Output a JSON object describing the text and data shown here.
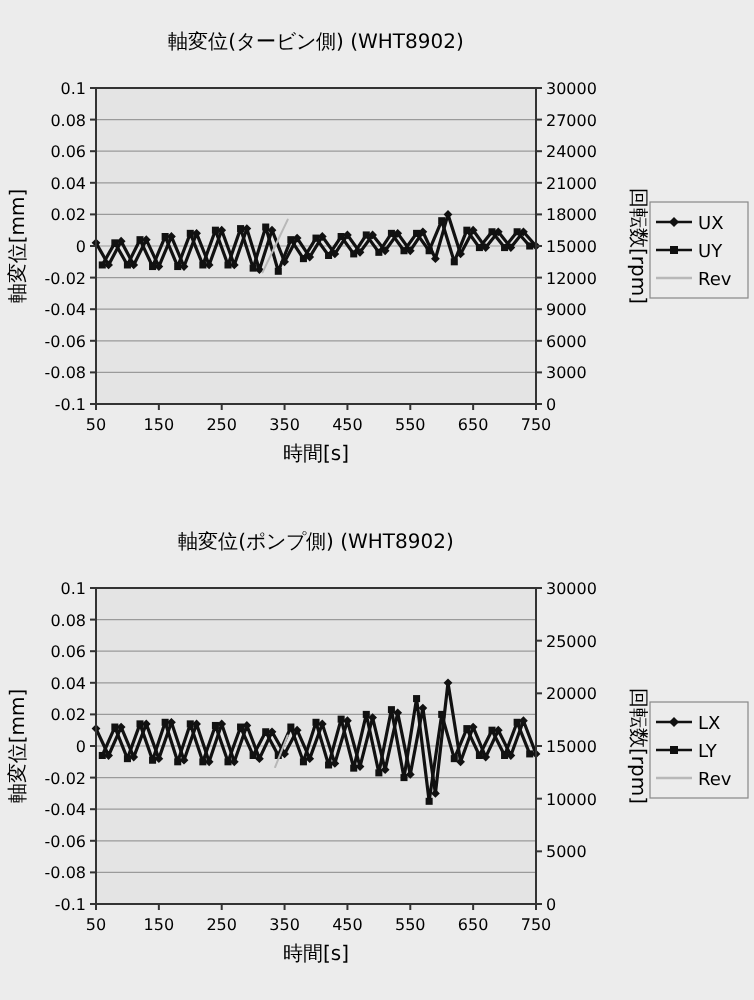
{
  "chart_data": [
    {
      "type": "line",
      "title": "軸変位(タービン側) (WHT8902)",
      "xlabel": "時間[s]",
      "ylabel": "軸変位[mm]",
      "y2label": "回転数[rpm]",
      "xlim": [
        50,
        750
      ],
      "xticks": [
        50,
        150,
        250,
        350,
        450,
        550,
        650,
        750
      ],
      "ylim": [
        -0.1,
        0.1
      ],
      "yticks": [
        -0.1,
        -0.08,
        -0.06,
        -0.04,
        -0.02,
        0,
        0.02,
        0.04,
        0.06,
        0.08,
        0.1
      ],
      "y2lim": [
        0,
        30000
      ],
      "y2ticks": [
        0,
        3000,
        6000,
        9000,
        12000,
        15000,
        18000,
        21000,
        24000,
        27000,
        30000
      ],
      "grid": "y",
      "legend": "right",
      "series": [
        {
          "name": "UX",
          "color": "#111111",
          "marker": "diamond",
          "x": [
            50,
            70,
            90,
            110,
            130,
            150,
            170,
            190,
            210,
            230,
            250,
            270,
            290,
            310,
            330,
            350,
            370,
            390,
            410,
            430,
            450,
            470,
            490,
            510,
            530,
            550,
            570,
            590,
            610,
            630,
            650,
            670,
            690,
            710,
            730,
            750
          ],
          "values": [
            0.002,
            -0.012,
            0.003,
            -0.012,
            0.004,
            -0.013,
            0.006,
            -0.013,
            0.008,
            -0.012,
            0.01,
            -0.012,
            0.011,
            -0.015,
            0.01,
            -0.01,
            0.005,
            -0.007,
            0.006,
            -0.005,
            0.007,
            -0.004,
            0.007,
            -0.003,
            0.008,
            -0.003,
            0.009,
            -0.008,
            0.02,
            -0.005,
            0.01,
            -0.001,
            0.009,
            -0.001,
            0.009,
            0
          ]
        },
        {
          "name": "UY",
          "color": "#111111",
          "marker": "square",
          "x": [
            60,
            80,
            100,
            120,
            140,
            160,
            180,
            200,
            220,
            240,
            260,
            280,
            300,
            320,
            340,
            360,
            380,
            400,
            420,
            440,
            460,
            480,
            500,
            520,
            540,
            560,
            580,
            600,
            620,
            640,
            660,
            680,
            700,
            720,
            740
          ],
          "values": [
            -0.012,
            0.002,
            -0.012,
            0.004,
            -0.013,
            0.006,
            -0.013,
            0.008,
            -0.012,
            0.01,
            -0.012,
            0.011,
            -0.014,
            0.012,
            -0.016,
            0.004,
            -0.008,
            0.005,
            -0.006,
            0.006,
            -0.005,
            0.007,
            -0.004,
            0.008,
            -0.003,
            0.008,
            -0.003,
            0.016,
            -0.01,
            0.01,
            -0.001,
            0.009,
            -0.001,
            0.009,
            0
          ]
        },
        {
          "name": "Rev",
          "color": "#b8b8b8",
          "marker": "none",
          "axis": "y2",
          "x": [
            315,
            335,
            355
          ],
          "values": [
            12500,
            15000,
            17500
          ]
        }
      ]
    },
    {
      "type": "line",
      "title": "軸変位(ポンプ側) (WHT8902)",
      "xlabel": "時間[s]",
      "ylabel": "軸変位[mm]",
      "y2label": "回転数[rpm]",
      "xlim": [
        50,
        750
      ],
      "xticks": [
        50,
        150,
        250,
        350,
        450,
        550,
        650,
        750
      ],
      "ylim": [
        -0.1,
        0.1
      ],
      "yticks": [
        -0.1,
        -0.08,
        -0.06,
        -0.04,
        -0.02,
        0,
        0.02,
        0.04,
        0.06,
        0.08,
        0.1
      ],
      "y2lim": [
        0,
        30000
      ],
      "y2ticks": [
        0,
        5000,
        10000,
        15000,
        20000,
        25000,
        30000
      ],
      "grid": "y",
      "legend": "right",
      "series": [
        {
          "name": "LX",
          "color": "#111111",
          "marker": "diamond",
          "x": [
            50,
            70,
            90,
            110,
            130,
            150,
            170,
            190,
            210,
            230,
            250,
            270,
            290,
            310,
            330,
            350,
            370,
            390,
            410,
            430,
            450,
            470,
            490,
            510,
            530,
            550,
            570,
            590,
            610,
            630,
            650,
            670,
            690,
            710,
            730,
            750
          ],
          "values": [
            0.011,
            -0.006,
            0.012,
            -0.007,
            0.014,
            -0.008,
            0.015,
            -0.009,
            0.014,
            -0.01,
            0.014,
            -0.01,
            0.013,
            -0.008,
            0.009,
            -0.005,
            0.01,
            -0.008,
            0.014,
            -0.011,
            0.016,
            -0.013,
            0.018,
            -0.015,
            0.021,
            -0.018,
            0.024,
            -0.03,
            0.04,
            -0.01,
            0.012,
            -0.007,
            0.01,
            -0.006,
            0.016,
            -0.005
          ]
        },
        {
          "name": "LY",
          "color": "#111111",
          "marker": "square",
          "x": [
            60,
            80,
            100,
            120,
            140,
            160,
            180,
            200,
            220,
            240,
            260,
            280,
            300,
            320,
            340,
            360,
            380,
            400,
            420,
            440,
            460,
            480,
            500,
            520,
            540,
            560,
            580,
            600,
            620,
            640,
            660,
            680,
            700,
            720,
            740
          ],
          "values": [
            -0.006,
            0.012,
            -0.008,
            0.014,
            -0.009,
            0.015,
            -0.01,
            0.014,
            -0.01,
            0.013,
            -0.01,
            0.012,
            -0.006,
            0.009,
            -0.006,
            0.012,
            -0.01,
            0.015,
            -0.012,
            0.017,
            -0.014,
            0.02,
            -0.017,
            0.023,
            -0.02,
            0.03,
            -0.035,
            0.02,
            -0.008,
            0.011,
            -0.006,
            0.01,
            -0.006,
            0.015,
            -0.005
          ]
        },
        {
          "name": "Rev",
          "color": "#b8b8b8",
          "marker": "none",
          "axis": "y2",
          "x": [
            335,
            345,
            355
          ],
          "values": [
            13000,
            14500,
            16000
          ]
        }
      ]
    }
  ]
}
